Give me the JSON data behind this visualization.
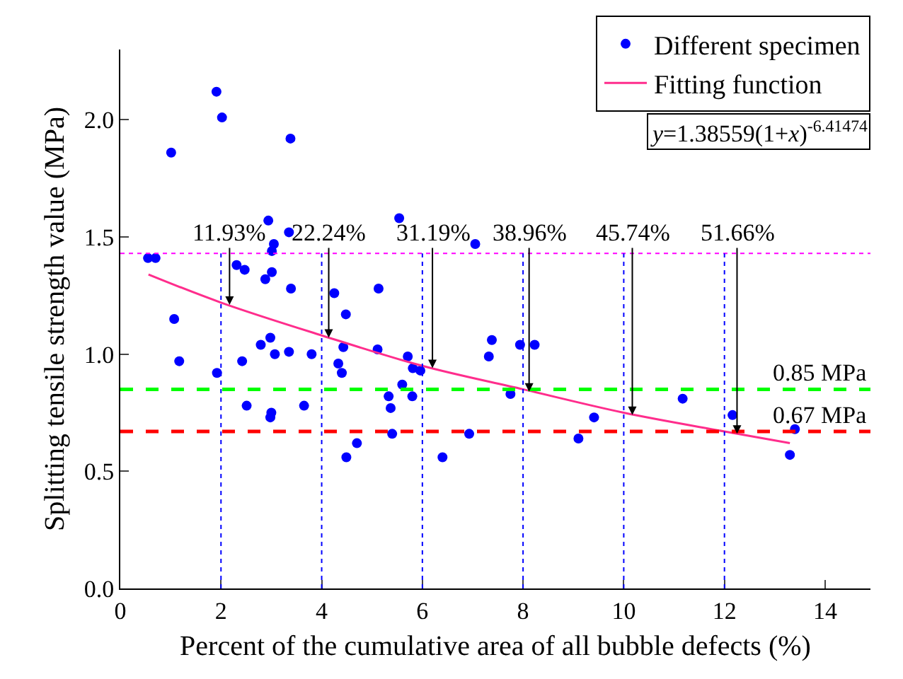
{
  "chart_data": {
    "type": "scatter",
    "xlabel": "Percent of the cumulative area of all bubble defects (%)",
    "ylabel": "Splitting tensile strength value (MPa)",
    "xlim": [
      0,
      14.9
    ],
    "xticks": [
      0,
      2,
      4,
      6,
      8,
      10,
      12,
      14
    ],
    "ylim": [
      0,
      2.3
    ],
    "yticks": [
      {
        "value": 0,
        "label": "0.0"
      },
      {
        "value": 0.5,
        "label": "0.5"
      },
      {
        "value": 1,
        "label": "1.0"
      },
      {
        "value": 1.5,
        "label": "1.5"
      },
      {
        "value": 2,
        "label": "2.0"
      }
    ],
    "legend": "top right",
    "marker": "circle",
    "series": [
      {
        "name": "Different specimen",
        "color": "#0000ff",
        "x": [
          1.91,
          2.02,
          1.01,
          3.38,
          2.94,
          3.35,
          5.54,
          7.05,
          3.05,
          3.01,
          0.55,
          0.7,
          2.31,
          2.47,
          3.01,
          2.88,
          3.39,
          5.13,
          4.25,
          4.48,
          1.07,
          7.38,
          2.98,
          2.79,
          4.43,
          5.11,
          3.07,
          3.35,
          3.8,
          7.32,
          5.71,
          1.17,
          2.42,
          4.33,
          1.92,
          4.4,
          5.81,
          5.96,
          5.6,
          5.33,
          5.8,
          2.51,
          5.37,
          3.0,
          2.98,
          3.65,
          7.75,
          5.4,
          6.93,
          4.7,
          4.49,
          6.4,
          7.94,
          8.23,
          11.17,
          9.41,
          9.1,
          12.16,
          13.4,
          13.3
        ],
        "values": [
          2.12,
          2.01,
          1.86,
          1.92,
          1.57,
          1.52,
          1.58,
          1.47,
          1.47,
          1.44,
          1.41,
          1.41,
          1.38,
          1.36,
          1.35,
          1.32,
          1.28,
          1.28,
          1.26,
          1.17,
          1.15,
          1.06,
          1.07,
          1.04,
          1.03,
          1.02,
          1.0,
          1.01,
          1.0,
          0.99,
          0.99,
          0.97,
          0.97,
          0.96,
          0.92,
          0.92,
          0.94,
          0.93,
          0.87,
          0.82,
          0.82,
          0.78,
          0.77,
          0.75,
          0.73,
          0.78,
          0.83,
          0.66,
          0.66,
          0.62,
          0.56,
          0.56,
          1.04,
          1.04,
          0.81,
          0.73,
          0.64,
          0.74,
          0.68,
          0.57
        ]
      },
      {
        "name": "Fitting function",
        "type": "line",
        "color": "#ff2d8c",
        "marker": "none",
        "x": [
          0.56,
          2,
          4,
          6,
          8,
          10,
          12,
          13.3
        ],
        "values": [
          1.34,
          1.22,
          1.08,
          0.95,
          0.85,
          0.75,
          0.67,
          0.62
        ]
      }
    ],
    "ref_lines": [
      {
        "axis": "y",
        "value": 1.43,
        "label": null,
        "color": "#ff00ff",
        "line_style": "dotted"
      },
      {
        "axis": "y",
        "value": 0.85,
        "label": "0.85 MPa",
        "color": "#00ff00",
        "line_style": "dashed"
      },
      {
        "axis": "y",
        "value": 0.67,
        "label": "0.67 MPa",
        "color": "#ff0000",
        "line_style": "dashed"
      },
      {
        "axis": "x",
        "value": 2,
        "label": null,
        "color": "#0000ff",
        "line_style": "dotted"
      },
      {
        "axis": "x",
        "value": 4,
        "label": null,
        "color": "#0000ff",
        "line_style": "dotted"
      },
      {
        "axis": "x",
        "value": 6,
        "label": null,
        "color": "#0000ff",
        "line_style": "dotted"
      },
      {
        "axis": "x",
        "value": 8,
        "label": null,
        "color": "#0000ff",
        "line_style": "dotted"
      },
      {
        "axis": "x",
        "value": 10,
        "label": null,
        "color": "#0000ff",
        "line_style": "dotted"
      },
      {
        "axis": "x",
        "value": 12,
        "label": null,
        "color": "#0000ff",
        "line_style": "dotted"
      }
    ],
    "annotations": [
      {
        "text": "11.93%",
        "x": 2.17,
        "y": 1.21
      },
      {
        "text": "22.24%",
        "x": 4.14,
        "y": 1.07
      },
      {
        "text": "31.19%",
        "x": 6.2,
        "y": 0.94
      },
      {
        "text": "38.96%",
        "x": 8.12,
        "y": 0.84
      },
      {
        "text": "45.74%",
        "x": 10.17,
        "y": 0.74
      },
      {
        "text": "51.66%",
        "x": 12.25,
        "y": 0.66
      },
      "y=1.38559(1+x)$^{-6.41474}$"
    ]
  }
}
